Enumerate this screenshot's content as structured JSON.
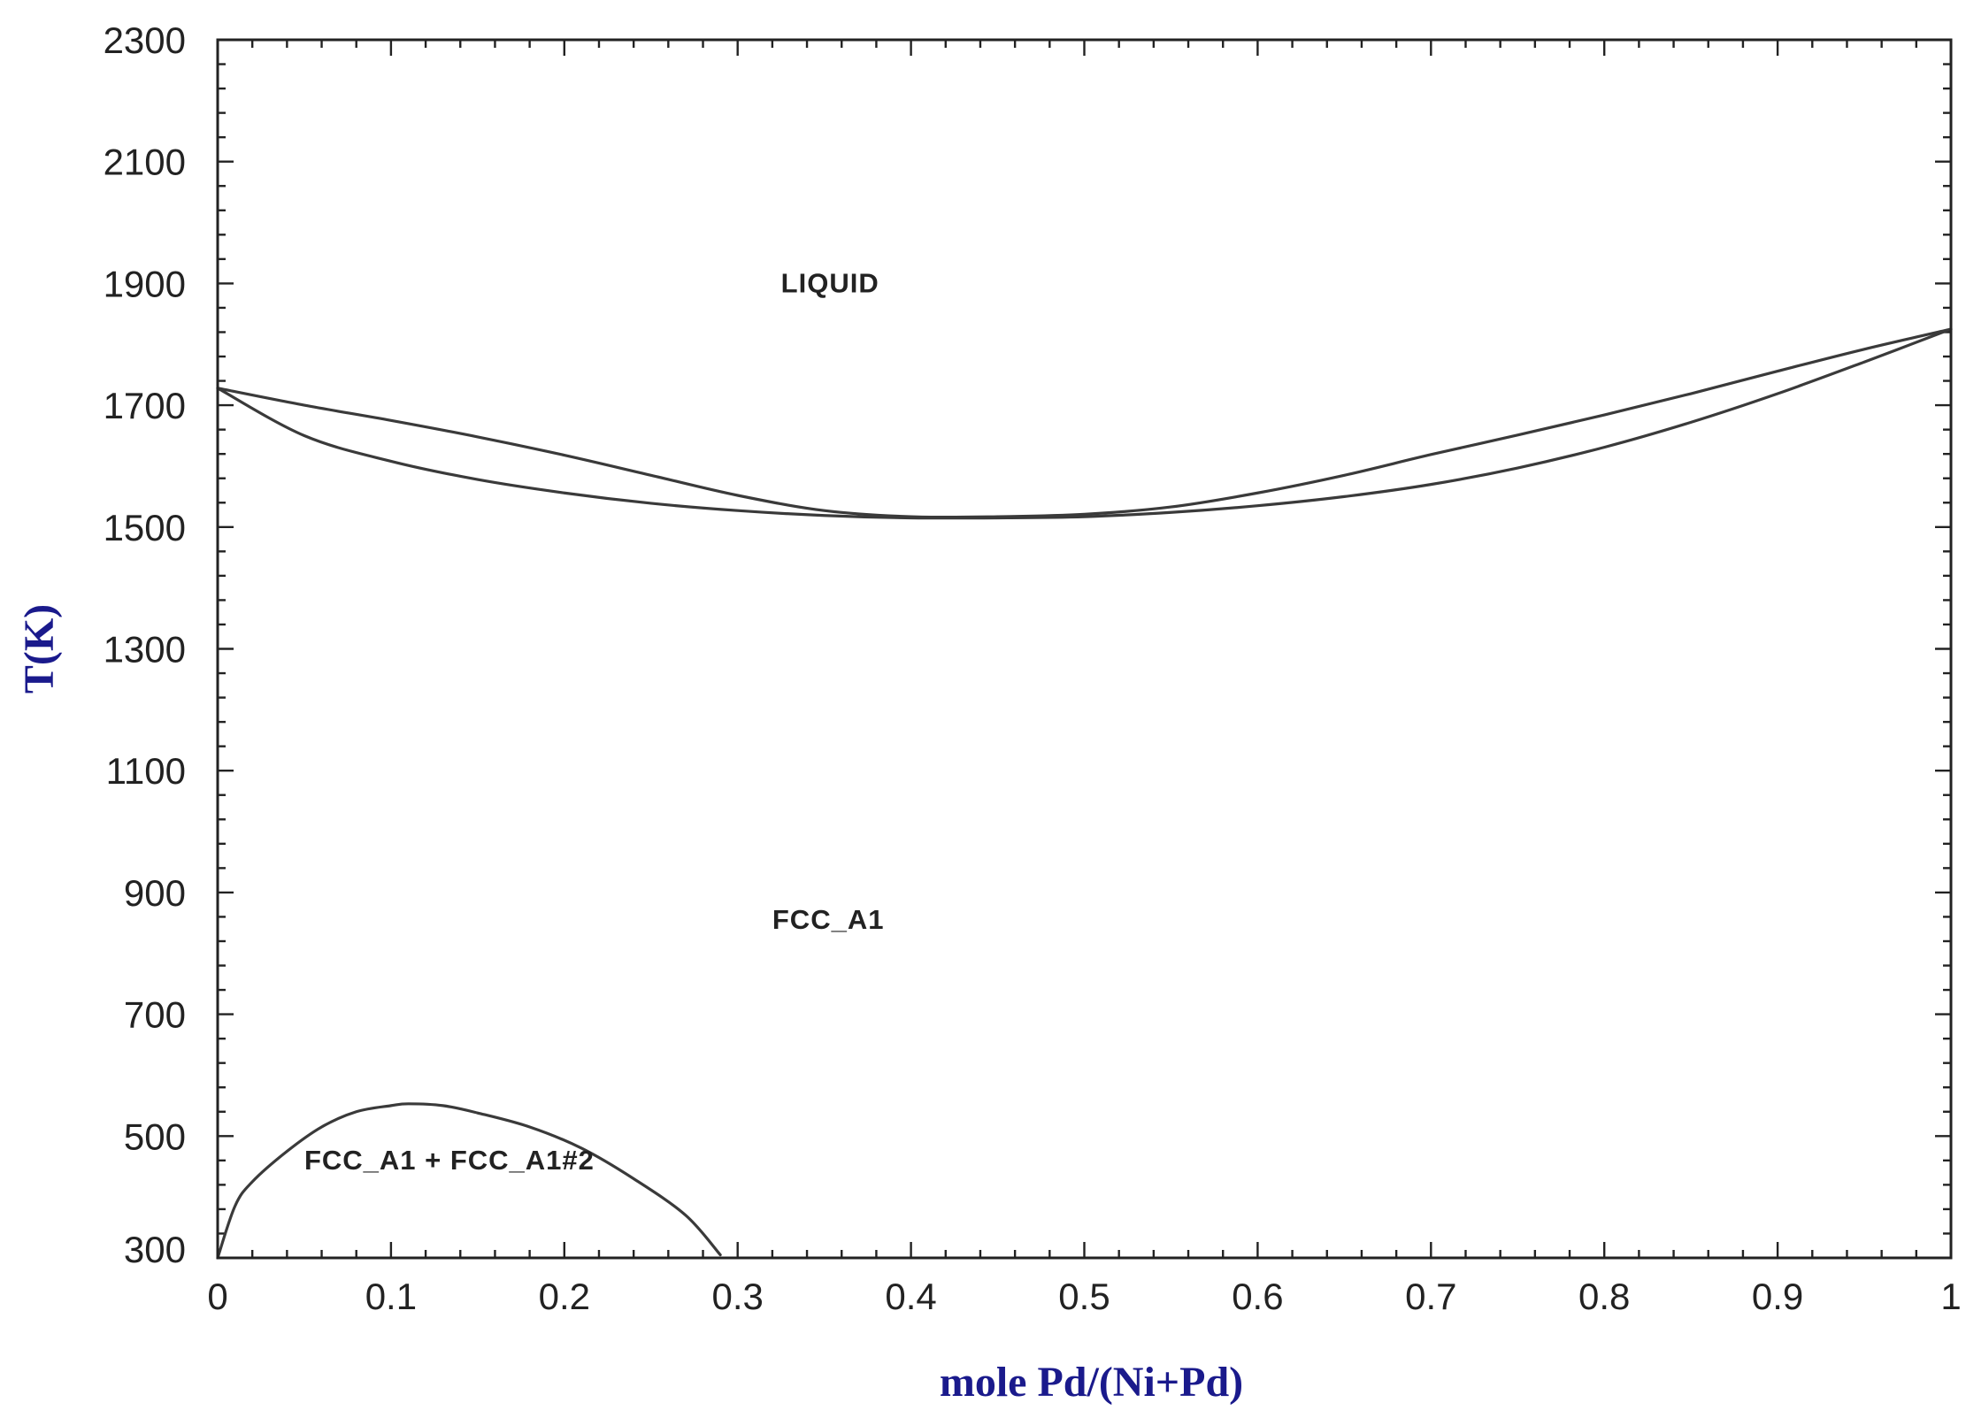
{
  "chart_data": {
    "type": "line",
    "title": "",
    "xlabel": "mole Pd/(Ni+Pd)",
    "ylabel": "T(K)",
    "xlim": [
      0,
      1
    ],
    "ylim": [
      300,
      2300
    ],
    "grid": false,
    "legend": "none",
    "line_color": "#3a3a3a",
    "axis_title_color": "#1a1a8c",
    "x_ticks": [
      {
        "value": 0,
        "label": "0"
      },
      {
        "value": 0.1,
        "label": "0.1"
      },
      {
        "value": 0.2,
        "label": "0.2"
      },
      {
        "value": 0.3,
        "label": "0.3"
      },
      {
        "value": 0.4,
        "label": "0.4"
      },
      {
        "value": 0.5,
        "label": "0.5"
      },
      {
        "value": 0.6,
        "label": "0.6"
      },
      {
        "value": 0.7,
        "label": "0.7"
      },
      {
        "value": 0.8,
        "label": "0.8"
      },
      {
        "value": 0.9,
        "label": "0.9"
      },
      {
        "value": 1,
        "label": "1"
      }
    ],
    "y_ticks": [
      {
        "value": 300,
        "label": "300"
      },
      {
        "value": 500,
        "label": "500"
      },
      {
        "value": 700,
        "label": "700"
      },
      {
        "value": 900,
        "label": "900"
      },
      {
        "value": 1100,
        "label": "1100"
      },
      {
        "value": 1300,
        "label": "1300"
      },
      {
        "value": 1500,
        "label": "1500"
      },
      {
        "value": 1700,
        "label": "1700"
      },
      {
        "value": 1900,
        "label": "1900"
      },
      {
        "value": 2100,
        "label": "2100"
      },
      {
        "value": 2300,
        "label": "2300"
      }
    ],
    "series": [
      {
        "key": "liquidus",
        "x": [
          0,
          0.05,
          0.1,
          0.15,
          0.2,
          0.25,
          0.3,
          0.35,
          0.4,
          0.45,
          0.5,
          0.55,
          0.6,
          0.65,
          0.7,
          0.75,
          0.8,
          0.85,
          0.9,
          0.95,
          1
        ],
        "y": [
          1728,
          1700,
          1675,
          1648,
          1618,
          1585,
          1552,
          1527,
          1517,
          1517,
          1521,
          1533,
          1556,
          1585,
          1619,
          1651,
          1684,
          1719,
          1756,
          1792,
          1825
        ]
      },
      {
        "key": "solidus",
        "x": [
          0,
          0.05,
          0.1,
          0.15,
          0.2,
          0.25,
          0.3,
          0.35,
          0.4,
          0.45,
          0.5,
          0.55,
          0.6,
          0.65,
          0.7,
          0.75,
          0.8,
          0.85,
          0.9,
          0.95,
          1
        ],
        "y": [
          1728,
          1650,
          1608,
          1578,
          1556,
          1539,
          1527,
          1519,
          1515,
          1515,
          1517,
          1524,
          1535,
          1550,
          1570,
          1597,
          1631,
          1672,
          1719,
          1771,
          1825
        ]
      },
      {
        "key": "miscibility-gap",
        "x": [
          0,
          0.01,
          0.02,
          0.04,
          0.06,
          0.08,
          0.1,
          0.11,
          0.13,
          0.15,
          0.18,
          0.21,
          0.24,
          0.27,
          0.29
        ],
        "y": [
          300,
          385,
          425,
          475,
          515,
          540,
          550,
          553,
          550,
          538,
          515,
          480,
          430,
          370,
          305
        ]
      }
    ],
    "annotations": [
      {
        "key": "liquid",
        "text": "LIQUID",
        "x": 0.325,
        "y": 1885
      },
      {
        "key": "fcc",
        "text": "FCC_A1",
        "x": 0.32,
        "y": 840
      },
      {
        "key": "two-phase",
        "text": "FCC_A1 + FCC_A1#2",
        "x": 0.05,
        "y": 445
      }
    ]
  }
}
